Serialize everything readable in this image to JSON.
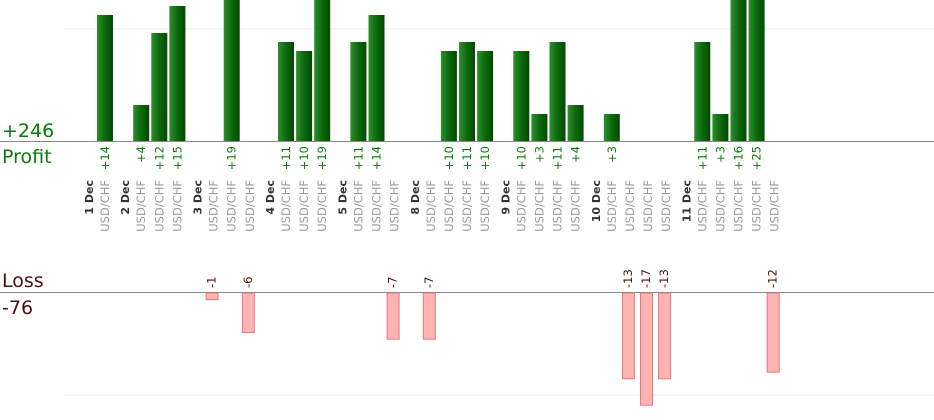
{
  "summary": {
    "profit_total": "+246",
    "profit_label": "Profit",
    "loss_label": "Loss",
    "loss_total": "-76"
  },
  "colors": {
    "profit_bar": "#0b6a0b",
    "profit_text": "#0a7a0a",
    "loss_bar": "#ffb3b3",
    "loss_bar_stroke": "#e07a7a",
    "loss_text": "#4a0f0f",
    "axis": "#888888",
    "grid": "#eeeeee",
    "date_text": "#333333",
    "pair_text": "#9a9a9a"
  },
  "chart_data": {
    "type": "bar",
    "pair": "USD/CHF",
    "ylim_profit": [
      0,
      19
    ],
    "ylim_loss": [
      0,
      17
    ],
    "groups": [
      {
        "date": "1 Dec",
        "trades": [
          14
        ]
      },
      {
        "date": "2 Dec",
        "trades": [
          4,
          12,
          15
        ]
      },
      {
        "date": "3 Dec",
        "trades": [
          -1,
          19,
          -6
        ]
      },
      {
        "date": "4 Dec",
        "trades": [
          11,
          10,
          19
        ]
      },
      {
        "date": "5 Dec",
        "trades": [
          11,
          14,
          -7
        ]
      },
      {
        "date": "8 Dec",
        "trades": [
          -7,
          10,
          11,
          10
        ]
      },
      {
        "date": "9 Dec",
        "trades": [
          10,
          3,
          11,
          4
        ]
      },
      {
        "date": "10 Dec",
        "trades": [
          3,
          -13,
          -17,
          -13
        ]
      },
      {
        "date": "11 Dec",
        "trades": [
          11,
          3,
          16,
          25,
          -12
        ]
      }
    ]
  }
}
